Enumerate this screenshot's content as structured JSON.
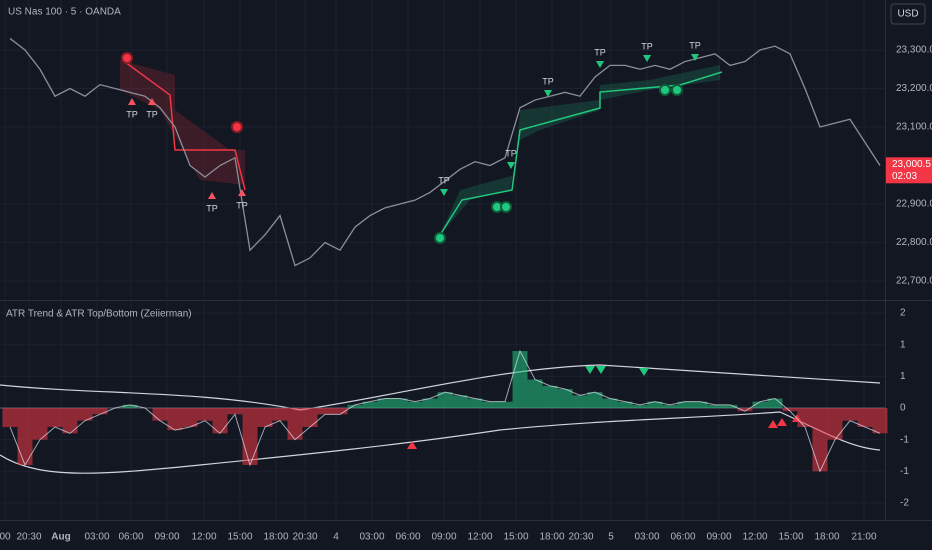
{
  "chart_data": {
    "type": "financial",
    "symbol_title": "US Nas 100 · 5 · OANDA",
    "currency": "USD",
    "last_price_label": "23,000.5",
    "countdown": "02:03",
    "indicator_title": "ATR Trend & ATR Top/Bottom (Zeiierman)",
    "tp_labels": [
      "TP",
      "TP",
      "TP",
      "TP",
      "TP",
      "TP",
      "TP",
      "TP",
      "TP",
      "TP"
    ],
    "yticks": [
      {
        "value": 23300,
        "label": "23,300.0"
      },
      {
        "value": 23200,
        "label": "23,200.0"
      },
      {
        "value": 23100,
        "label": "23,100.0"
      },
      {
        "value": 22900,
        "label": "22,900.0"
      },
      {
        "value": 22800,
        "label": "22,800.0"
      },
      {
        "value": 22700,
        "label": "22,700.0"
      }
    ],
    "y2ticks": [
      {
        "value": 1.5,
        "label": "2"
      },
      1,
      {
        "value": 0.5,
        "label": "1"
      },
      0,
      {
        "value": -0.5,
        "label": "-1"
      },
      -1,
      {
        "value": -1.5,
        "label": "-2"
      }
    ],
    "x_labels": [
      "00",
      "20:30",
      "Aug",
      "03:00",
      "06:00",
      "09:00",
      "12:00",
      "15:00",
      "18:00",
      "20:30",
      "4",
      "03:00",
      "06:00",
      "09:00",
      "12:00",
      "15:00",
      "18:00",
      "20:30",
      "5",
      "03:00",
      "06:00",
      "09:00",
      "12:00",
      "15:00",
      "18:00",
      "21:00"
    ],
    "price": {
      "name": "US Nas 100",
      "color": "#8a8f99",
      "values": [
        23330,
        23300,
        23250,
        23180,
        23200,
        23180,
        23210,
        23200,
        23190,
        23180,
        23150,
        23100,
        23000,
        22970,
        23000,
        23020,
        22780,
        22820,
        22870,
        22740,
        22760,
        22800,
        22780,
        22840,
        22870,
        22890,
        22900,
        22910,
        22930,
        22960,
        22990,
        23010,
        23000,
        23020,
        23150,
        23170,
        23180,
        23190,
        23180,
        23230,
        23260,
        23260,
        23250,
        23260,
        23250,
        23270,
        23280,
        23290,
        23260,
        23270,
        23300,
        23310,
        23290,
        23200,
        23100,
        23110,
        23120,
        23060,
        23000
      ]
    },
    "oscillator": {
      "up_color": "#22c77f",
      "down_color": "#f23645",
      "values": [
        -0.3,
        -0.9,
        -0.5,
        -0.3,
        -0.4,
        -0.2,
        -0.1,
        0,
        0.05,
        0,
        -0.2,
        -0.35,
        -0.3,
        -0.2,
        -0.4,
        -0.1,
        -0.9,
        -0.3,
        -0.2,
        -0.5,
        -0.3,
        -0.1,
        -0.1,
        0.05,
        0.1,
        0.15,
        0.15,
        0.1,
        0.15,
        0.25,
        0.2,
        0.15,
        0.1,
        0.1,
        0.9,
        0.45,
        0.35,
        0.3,
        0.2,
        0.25,
        0.15,
        0.1,
        0.05,
        0.1,
        0.05,
        0.1,
        0.1,
        0.05,
        0.05,
        -0.05,
        0.1,
        0.15,
        -0.05,
        -0.3,
        -1.0,
        -0.5,
        -0.2,
        -0.3,
        -0.4
      ]
    }
  }
}
